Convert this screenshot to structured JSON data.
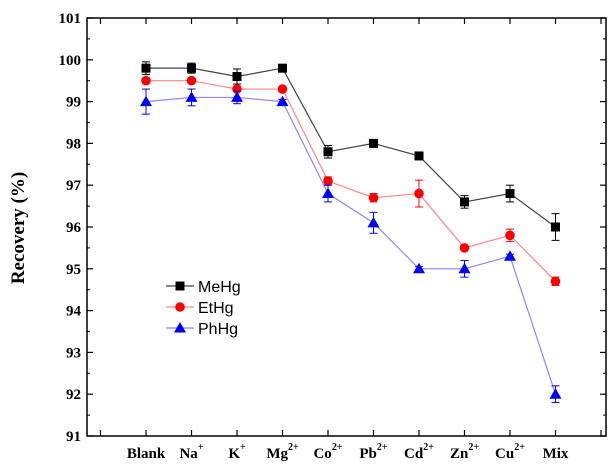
{
  "chart_data": {
    "type": "line",
    "title": "",
    "xlabel": "",
    "ylabel": "Recovery (%)",
    "ylim": [
      91,
      101
    ],
    "yticks": [
      91,
      92,
      93,
      94,
      95,
      96,
      97,
      98,
      99,
      100,
      101
    ],
    "grid": false,
    "legend_position": "center-left",
    "categories": [
      {
        "base": "Blank",
        "sup": ""
      },
      {
        "base": "Na",
        "sup": "+"
      },
      {
        "base": "K",
        "sup": "+"
      },
      {
        "base": "Mg",
        "sup": "2+"
      },
      {
        "base": "Co",
        "sup": "2+"
      },
      {
        "base": "Pb",
        "sup": "2+"
      },
      {
        "base": "Cd",
        "sup": "2+"
      },
      {
        "base": "Zn",
        "sup": "2+"
      },
      {
        "base": "Cu",
        "sup": "2+"
      },
      {
        "base": "Mix",
        "sup": ""
      }
    ],
    "series": [
      {
        "name": "MeHg",
        "marker": "square",
        "color": "#000000",
        "line_color": "#444444",
        "values": [
          99.8,
          99.8,
          99.6,
          99.8,
          97.8,
          98.0,
          97.7,
          96.6,
          96.8,
          96.0
        ],
        "errors": [
          0.15,
          0.12,
          0.18,
          0.06,
          0.15,
          0.08,
          0.05,
          0.15,
          0.2,
          0.32
        ]
      },
      {
        "name": "EtHg",
        "marker": "circle",
        "color": "#ff0000",
        "line_color": "#ff8888",
        "values": [
          99.5,
          99.5,
          99.3,
          99.3,
          97.1,
          96.7,
          96.8,
          95.5,
          95.8,
          94.7
        ],
        "errors": [
          0.05,
          0.05,
          0.05,
          0.05,
          0.1,
          0.1,
          0.32,
          0.05,
          0.15,
          0.1
        ]
      },
      {
        "name": "PhHg",
        "marker": "triangle",
        "color": "#0000ff",
        "line_color": "#8888ff",
        "values": [
          99.0,
          99.1,
          99.1,
          99.0,
          96.8,
          96.1,
          95.0,
          95.0,
          95.3,
          92.0
        ],
        "errors": [
          0.3,
          0.2,
          0.15,
          0.05,
          0.2,
          0.25,
          0.05,
          0.2,
          0.05,
          0.2
        ]
      }
    ]
  }
}
